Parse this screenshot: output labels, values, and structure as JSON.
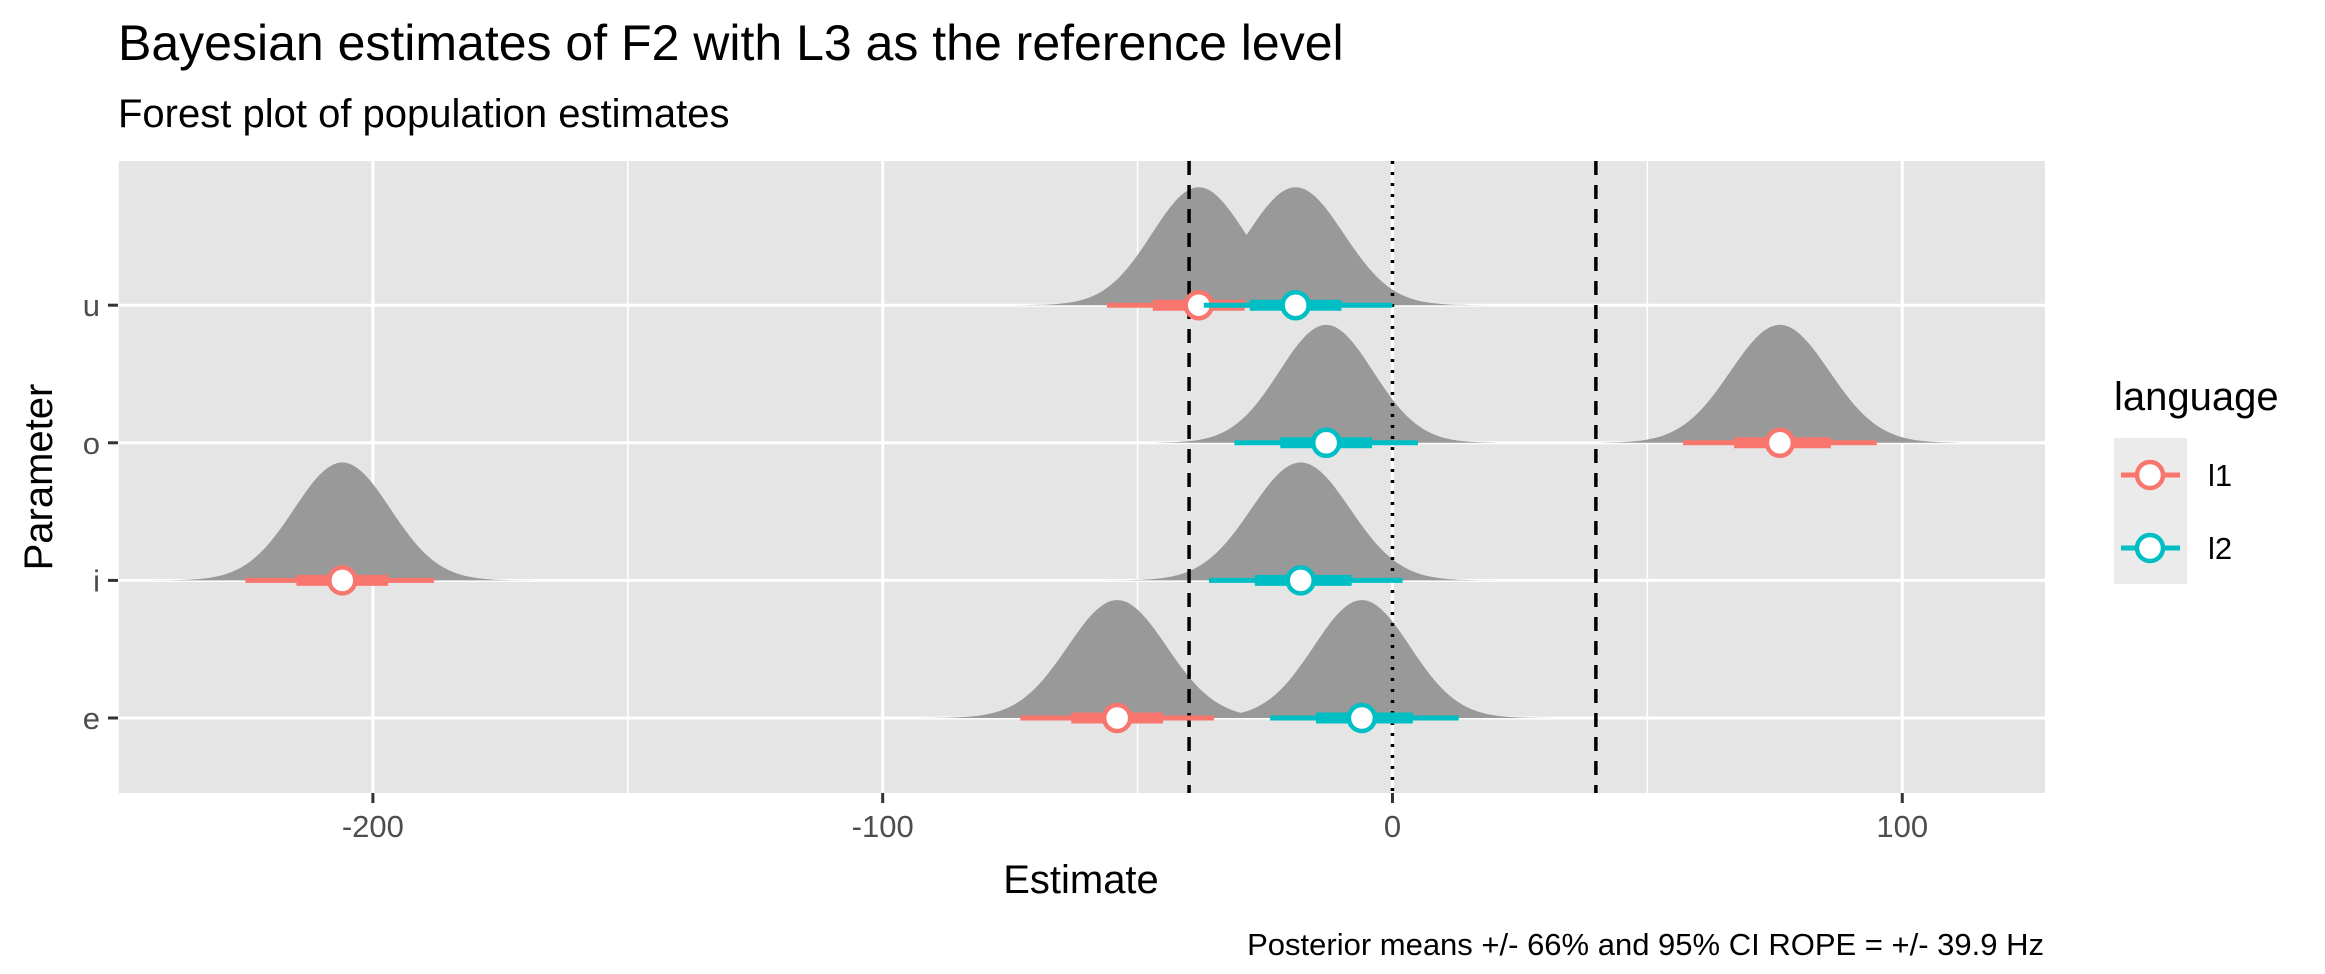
{
  "chart_data": {
    "type": "forest-halfeye",
    "title": "Bayesian estimates of F2 with L3 as the reference level",
    "subtitle": "Forest plot of population estimates",
    "xlabel": "Estimate",
    "ylabel": "Parameter",
    "caption": "Posterior means +/- 66% and 95% CI ROPE = +/- 39.9 Hz",
    "xlim": [
      -250,
      128
    ],
    "x_ticks": [
      -200,
      -100,
      0,
      100
    ],
    "x_tick_labels": [
      "-200",
      "-100",
      "0",
      "100"
    ],
    "categories": [
      "e",
      "i",
      "o",
      "u"
    ],
    "rope": [
      -39.9,
      39.9
    ],
    "zero_line": 0,
    "legend": {
      "title": "language",
      "entries": [
        {
          "name": "l1",
          "color": "#F8766D"
        },
        {
          "name": "l2",
          "color": "#00BFC4"
        }
      ]
    },
    "series": [
      {
        "name": "l1",
        "color": "#F8766D",
        "points": [
          {
            "parameter": "u",
            "mean": -38,
            "ci66": [
              -47,
              -29
            ],
            "ci95": [
              -56,
              -20
            ]
          },
          {
            "parameter": "o",
            "mean": 76,
            "ci66": [
              67,
              86
            ],
            "ci95": [
              57,
              95
            ]
          },
          {
            "parameter": "i",
            "mean": -206,
            "ci66": [
              -215,
              -197
            ],
            "ci95": [
              -225,
              -188
            ]
          },
          {
            "parameter": "e",
            "mean": -54,
            "ci66": [
              -63,
              -45
            ],
            "ci95": [
              -73,
              -35
            ]
          }
        ]
      },
      {
        "name": "l2",
        "color": "#00BFC4",
        "points": [
          {
            "parameter": "u",
            "mean": -19,
            "ci66": [
              -28,
              -10
            ],
            "ci95": [
              -37,
              0
            ]
          },
          {
            "parameter": "o",
            "mean": -13,
            "ci66": [
              -22,
              -4
            ],
            "ci95": [
              -31,
              5
            ]
          },
          {
            "parameter": "i",
            "mean": -18,
            "ci66": [
              -27,
              -8
            ],
            "ci95": [
              -36,
              2
            ]
          },
          {
            "parameter": "e",
            "mean": -6,
            "ci66": [
              -15,
              4
            ],
            "ci95": [
              -24,
              13
            ]
          }
        ]
      }
    ]
  },
  "colors": {
    "panel_background": "#E5E5E5",
    "grid": "#FFFFFF",
    "density_fill": "#999999",
    "legend_key_background": "#EBEBEB"
  }
}
